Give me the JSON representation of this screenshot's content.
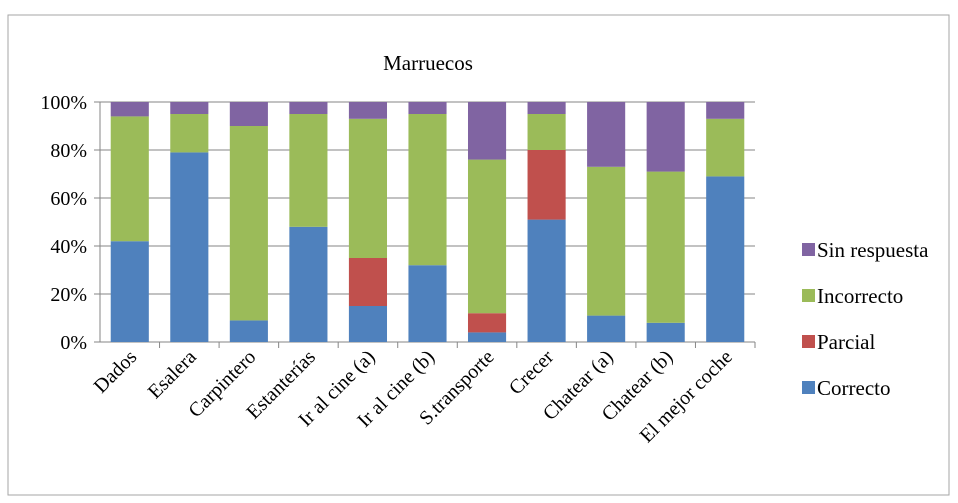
{
  "chart_data": {
    "type": "bar",
    "stacked": true,
    "percent": true,
    "title": "Marruecos",
    "xlabel": "",
    "ylabel": "",
    "ylim": [
      0,
      100
    ],
    "yticks": [
      "0%",
      "20%",
      "40%",
      "60%",
      "80%",
      "100%"
    ],
    "grid": true,
    "legend_position": "right",
    "categories": [
      "Dados",
      "Esalera",
      "Carpintero",
      "Estanterías",
      "Ir al cine (a)",
      "Ir al cine (b)",
      "S.transporte",
      "Crecer",
      "Chatear (a)",
      "Chatear (b)",
      "El mejor coche"
    ],
    "series": [
      {
        "name": "Correcto",
        "color": "#4f81bd",
        "values": [
          42,
          79,
          9,
          48,
          15,
          32,
          4,
          51,
          11,
          8,
          69
        ]
      },
      {
        "name": "Parcial",
        "color": "#c0504d",
        "values": [
          0,
          0,
          0,
          0,
          20,
          0,
          8,
          29,
          0,
          0,
          0
        ]
      },
      {
        "name": "Incorrecto",
        "color": "#9bbb59",
        "values": [
          52,
          16,
          81,
          47,
          58,
          63,
          64,
          15,
          62,
          63,
          24
        ]
      },
      {
        "name": "Sin respuesta",
        "color": "#8064a2",
        "values": [
          6,
          5,
          10,
          5,
          7,
          5,
          24,
          5,
          27,
          29,
          7
        ]
      }
    ],
    "legend_order": [
      "Sin respuesta",
      "Incorrecto",
      "Parcial",
      "Correcto"
    ]
  }
}
